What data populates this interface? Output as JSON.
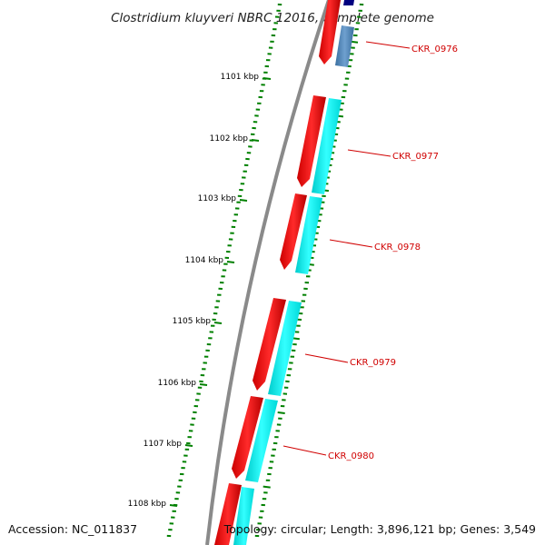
{
  "title": "Clostridium kluyveri NBRC 12016, complete genome",
  "accession_text": "Accession: NC_011837",
  "info_text": "Topology: circular; Length: 3,896,121 bp; Genes: 3,549",
  "ticks": [
    {
      "label": "1101 kbp"
    },
    {
      "label": "1102 kbp"
    },
    {
      "label": "1103 kbp"
    },
    {
      "label": "1104 kbp"
    },
    {
      "label": "1105 kbp"
    },
    {
      "label": "1106 kbp"
    },
    {
      "label": "1107 kbp"
    },
    {
      "label": "1108 kbp"
    }
  ],
  "genes": [
    {
      "label": "CKR_0976"
    },
    {
      "label": "CKR_0977"
    },
    {
      "label": "CKR_0978"
    },
    {
      "label": "CKR_0979"
    },
    {
      "label": "CKR_0980"
    }
  ],
  "colors": {
    "cds_forward": "#ff0000",
    "cds_highlight": "#00ffff",
    "cds_other": "#4682b4",
    "backbone": "#808080",
    "ruler_ticks": "#008000",
    "gene_labels": "#d00000"
  }
}
